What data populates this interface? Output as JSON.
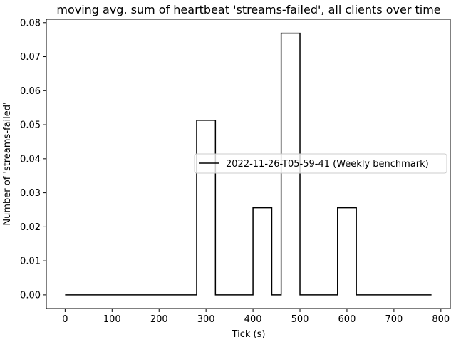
{
  "chart_data": {
    "type": "line",
    "title": "moving avg. sum of heartbeat 'streams-failed', all clients over time",
    "xlabel": "Tick (s)",
    "ylabel": "Number of 'streams-failed'",
    "xlim": [
      -40,
      820
    ],
    "ylim": [
      -0.004,
      0.081
    ],
    "xticks": [
      0,
      100,
      200,
      300,
      400,
      500,
      600,
      700,
      800
    ],
    "yticks": [
      0.0,
      0.01,
      0.02,
      0.03,
      0.04,
      0.05,
      0.06,
      0.07,
      0.08
    ],
    "ytick_labels": [
      "0.00",
      "0.01",
      "0.02",
      "0.03",
      "0.04",
      "0.05",
      "0.06",
      "0.07",
      "0.08"
    ],
    "grid": false,
    "legend_position": "center-right",
    "series": [
      {
        "name": "2022-11-26-T05-59-41 (Weekly benchmark)",
        "color": "#000000",
        "x": [
          0,
          280,
          280,
          320,
          320,
          400,
          400,
          440,
          440,
          460,
          460,
          500,
          500,
          580,
          580,
          620,
          620,
          780
        ],
        "y": [
          0,
          0,
          0.0513,
          0.0513,
          0,
          0,
          0.0256,
          0.0256,
          0,
          0,
          0.0769,
          0.0769,
          0,
          0,
          0.0256,
          0.0256,
          0,
          0
        ]
      }
    ]
  }
}
